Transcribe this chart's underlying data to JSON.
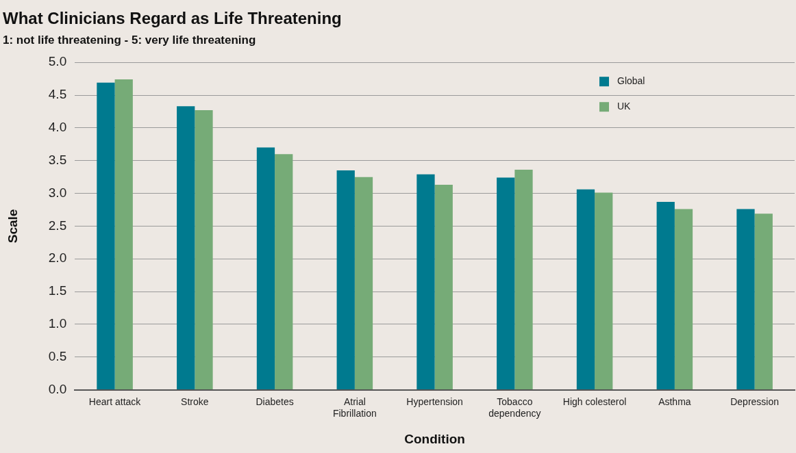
{
  "chart_data": {
    "type": "bar",
    "title": "What Clinicians Regard as Life Threatening",
    "subtitle": "1: not life threatening - 5: very life threatening",
    "xlabel": "Condition",
    "ylabel": "Scale",
    "categories": [
      "Heart attack",
      "Stroke",
      "Diabetes",
      "Atrial Fibrillation",
      "Hypertension",
      "Tobacco dependency",
      "High colesterol",
      "Asthma",
      "Depression"
    ],
    "series": [
      {
        "name": "Global",
        "color": "#007a8f",
        "values": [
          4.69,
          4.33,
          3.7,
          3.35,
          3.29,
          3.24,
          3.06,
          2.87,
          2.76
        ]
      },
      {
        "name": "UK",
        "color": "#76ab77",
        "values": [
          4.74,
          4.27,
          3.6,
          3.25,
          3.13,
          3.36,
          3.01,
          2.76,
          2.69
        ]
      }
    ],
    "ylim": [
      0,
      5
    ],
    "yticks": [
      {
        "value": 0,
        "label": "0.0"
      },
      {
        "value": 0.5,
        "label": "0.5"
      },
      {
        "value": 1,
        "label": "1.0"
      },
      {
        "value": 1.5,
        "label": "1.5"
      },
      {
        "value": 2,
        "label": "2.0"
      },
      {
        "value": 2.5,
        "label": "2.5"
      },
      {
        "value": 3,
        "label": "3.0"
      },
      {
        "value": 3.5,
        "label": "3.5"
      },
      {
        "value": 4,
        "label": "4.0"
      },
      {
        "value": 4.5,
        "label": "4.5"
      },
      {
        "value": 5,
        "label": "5.0"
      }
    ],
    "grid": "y",
    "legend": "top right"
  }
}
